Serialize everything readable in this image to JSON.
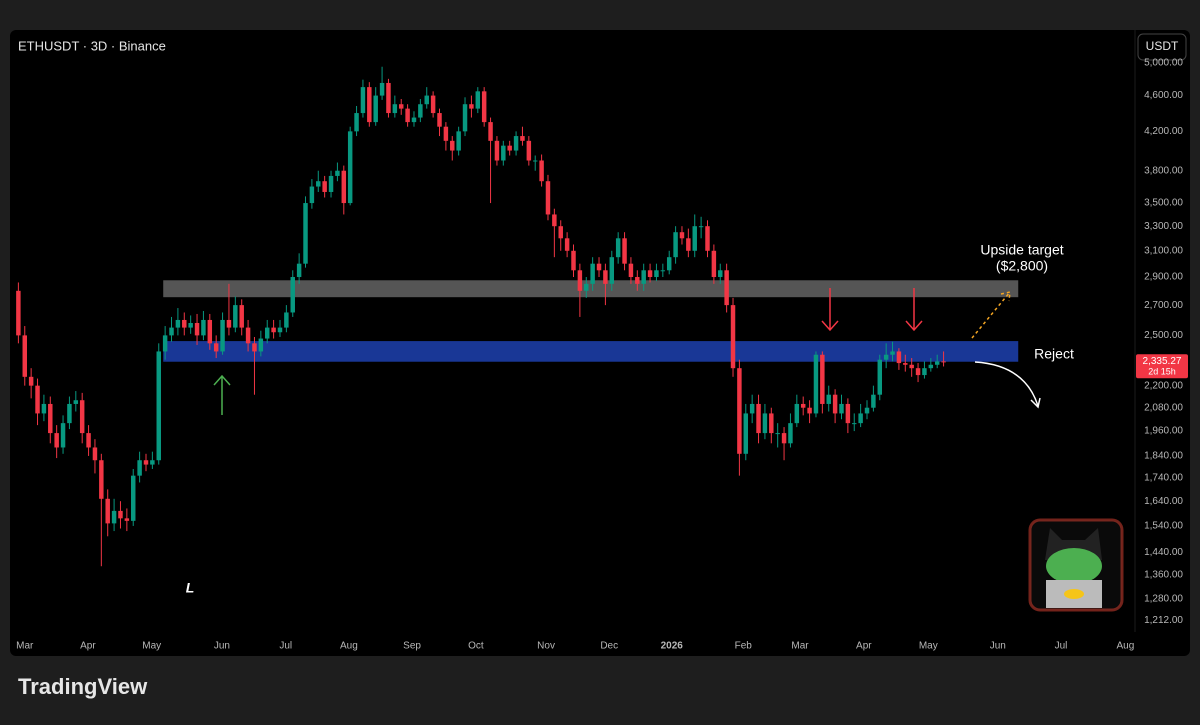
{
  "header": {
    "symbol": "ETHUSDT · 3D · Binance",
    "currency": "USDT"
  },
  "chart_data": {
    "type": "candlestick",
    "log_scale": true,
    "grid": false,
    "up_color": "#089981",
    "down_color": "#f23645",
    "x": [
      -1,
      0,
      1,
      2,
      3,
      4,
      5,
      6,
      7,
      8,
      9,
      10,
      11,
      12,
      13,
      14,
      15,
      16,
      17,
      18,
      19,
      20,
      21,
      22,
      23,
      24,
      25,
      26,
      27,
      28,
      29,
      30,
      31,
      32,
      33,
      34,
      35,
      36,
      37,
      38,
      39,
      40,
      41,
      42,
      43,
      44,
      45,
      46,
      47,
      48,
      49,
      50,
      51,
      52,
      53,
      54,
      55,
      56,
      57,
      58,
      59,
      60,
      61,
      62,
      63,
      64,
      65,
      66,
      67,
      68,
      69,
      70,
      71,
      72,
      73,
      74,
      75,
      76,
      77,
      78,
      79,
      80,
      81,
      82,
      83,
      84,
      85,
      86,
      87,
      88,
      89,
      90,
      91,
      92,
      93,
      94,
      95,
      96,
      97,
      98,
      99,
      100,
      101,
      102,
      103,
      104,
      105,
      106,
      107,
      108,
      109,
      110,
      111,
      112,
      113,
      114,
      115,
      116,
      117,
      118,
      119,
      120,
      121,
      122,
      123,
      124,
      125,
      126,
      127,
      128,
      129,
      130,
      131,
      132,
      133,
      134,
      135,
      136,
      137,
      138,
      139,
      140,
      141,
      142,
      143,
      144
    ],
    "open": [
      2800,
      2500,
      2250,
      2200,
      2050,
      2100,
      1950,
      1880,
      2000,
      2100,
      2120,
      1950,
      1880,
      1820,
      1650,
      1550,
      1600,
      1570,
      1560,
      1750,
      1820,
      1800,
      1820,
      2400,
      2500,
      2550,
      2600,
      2550,
      2580,
      2500,
      2600,
      2450,
      2400,
      2600,
      2550,
      2700,
      2550,
      2450,
      2400,
      2480,
      2550,
      2520,
      2550,
      2650,
      2900,
      3000,
      3500,
      3650,
      3700,
      3600,
      3750,
      3800,
      3500,
      4200,
      4400,
      4700,
      4300,
      4600,
      4750,
      4400,
      4500,
      4450,
      4300,
      4350,
      4500,
      4600,
      4400,
      4250,
      4100,
      4000,
      4200,
      4500,
      4450,
      4650,
      4300,
      4100,
      3900,
      4050,
      4000,
      4150,
      4100,
      3900,
      3900,
      3700,
      3400,
      3300,
      3200,
      3100,
      2950,
      2800,
      2850,
      3000,
      2950,
      2850,
      3050,
      3200,
      3000,
      2900,
      2850,
      2950,
      2900,
      2950,
      2950,
      3050,
      3250,
      3200,
      3100,
      3300,
      3300,
      3100,
      2900,
      2950,
      2700,
      2300,
      1850,
      2050,
      2100,
      1950,
      2050,
      1950,
      1950,
      1900,
      2000,
      2100,
      2080,
      2050,
      2380,
      2100,
      2150,
      2050,
      2100,
      2000,
      2000,
      2050,
      2080,
      2150,
      2350,
      2380,
      2400,
      2330,
      2320,
      2300,
      2260,
      2300,
      2320,
      2340
    ],
    "high": [
      2860,
      2560,
      2300,
      2240,
      2150,
      2140,
      1990,
      2040,
      2140,
      2170,
      2160,
      1990,
      1920,
      1850,
      1690,
      1650,
      1640,
      1610,
      1780,
      1860,
      1850,
      1860,
      2450,
      2560,
      2620,
      2680,
      2650,
      2630,
      2640,
      2660,
      2640,
      2500,
      2650,
      2850,
      2760,
      2740,
      2600,
      2490,
      2530,
      2600,
      2600,
      2600,
      2700,
      2950,
      3080,
      3560,
      3720,
      3800,
      3750,
      3800,
      3880,
      3850,
      4250,
      4480,
      4790,
      4760,
      4700,
      4950,
      4800,
      4600,
      4560,
      4500,
      4420,
      4560,
      4700,
      4650,
      4450,
      4300,
      4150,
      4250,
      4580,
      4600,
      4700,
      4700,
      4350,
      4150,
      4100,
      4100,
      4200,
      4250,
      4150,
      3950,
      3960,
      3760,
      3450,
      3350,
      3250,
      3150,
      3000,
      2900,
      3050,
      3050,
      3000,
      3100,
      3250,
      3250,
      3050,
      2950,
      3000,
      3000,
      3000,
      3000,
      3100,
      3300,
      3300,
      3280,
      3400,
      3380,
      3350,
      3150,
      3000,
      3000,
      2750,
      2350,
      2100,
      2150,
      2150,
      2100,
      2080,
      2000,
      1980,
      2050,
      2150,
      2140,
      2120,
      2400,
      2400,
      2200,
      2180,
      2150,
      2130,
      2050,
      2100,
      2120,
      2200,
      2380,
      2450,
      2460,
      2420,
      2380,
      2360,
      2330,
      2340,
      2360,
      2380,
      2400
    ],
    "low": [
      2450,
      2200,
      2130,
      1990,
      2010,
      1900,
      1830,
      1850,
      1970,
      2060,
      1900,
      1840,
      1760,
      1390,
      1500,
      1520,
      1530,
      1520,
      1540,
      1720,
      1770,
      1780,
      1800,
      2350,
      2460,
      2500,
      2500,
      2510,
      2440,
      2470,
      2410,
      2360,
      2380,
      2500,
      2520,
      2500,
      2400,
      2150,
      2370,
      2450,
      2480,
      2490,
      2520,
      2620,
      2850,
      2970,
      3450,
      3600,
      3550,
      3550,
      3700,
      3400,
      3480,
      4150,
      4350,
      4250,
      4260,
      4550,
      4350,
      4350,
      4380,
      4250,
      4250,
      4300,
      4450,
      4350,
      4150,
      4000,
      3900,
      3950,
      4150,
      4350,
      4400,
      4250,
      3500,
      3850,
      3850,
      3950,
      3950,
      4050,
      3850,
      3800,
      3650,
      3350,
      3050,
      3100,
      3050,
      2900,
      2620,
      2750,
      2800,
      2900,
      2700,
      2800,
      3000,
      2950,
      2850,
      2800,
      2800,
      2860,
      2870,
      2900,
      2920,
      3000,
      3150,
      3050,
      3050,
      3200,
      3050,
      2850,
      2850,
      2650,
      2250,
      1750,
      1820,
      2000,
      1900,
      1920,
      1900,
      1880,
      1820,
      1880,
      1980,
      2040,
      2000,
      2030,
      2050,
      2060,
      2000,
      2020,
      1950,
      1960,
      1980,
      2020,
      2060,
      2120,
      2300,
      2340,
      2290,
      2280,
      2250,
      2220,
      2240,
      2280,
      2300,
      2310
    ],
    "close": [
      2500,
      2250,
      2200,
      2050,
      2100,
      1950,
      1880,
      2000,
      2100,
      2120,
      1950,
      1880,
      1820,
      1650,
      1550,
      1600,
      1570,
      1560,
      1750,
      1820,
      1800,
      1820,
      2400,
      2500,
      2550,
      2600,
      2550,
      2580,
      2500,
      2600,
      2450,
      2400,
      2600,
      2550,
      2700,
      2550,
      2450,
      2400,
      2480,
      2550,
      2520,
      2550,
      2650,
      2900,
      3000,
      3500,
      3650,
      3700,
      3600,
      3750,
      3800,
      3500,
      4200,
      4400,
      4700,
      4300,
      4600,
      4750,
      4400,
      4500,
      4450,
      4300,
      4350,
      4500,
      4600,
      4400,
      4250,
      4100,
      4000,
      4200,
      4500,
      4450,
      4650,
      4300,
      4100,
      3900,
      4050,
      4000,
      4150,
      4100,
      3900,
      3900,
      3700,
      3400,
      3300,
      3200,
      3100,
      2950,
      2800,
      2850,
      3000,
      2950,
      2850,
      3050,
      3200,
      3000,
      2900,
      2850,
      2950,
      2900,
      2950,
      2950,
      3050,
      3250,
      3200,
      3100,
      3300,
      3300,
      3100,
      2900,
      2950,
      2700,
      2300,
      1850,
      2050,
      2100,
      1950,
      2050,
      1950,
      1950,
      1900,
      2000,
      2100,
      2080,
      2050,
      2380,
      2100,
      2150,
      2050,
      2100,
      2000,
      2000,
      2050,
      2080,
      2150,
      2350,
      2380,
      2400,
      2330,
      2320,
      2300,
      2260,
      2300,
      2320,
      2340,
      2335.27
    ],
    "last_label": "2,335.27",
    "countdown": "2d 15h",
    "xlim": [
      -2,
      174
    ],
    "xticks": [
      {
        "value": 0,
        "label": "Mar"
      },
      {
        "value": 9.9,
        "label": "Apr"
      },
      {
        "value": 19.9,
        "label": "May"
      },
      {
        "value": 30.9,
        "label": "Jun"
      },
      {
        "value": 40.9,
        "label": "Jul"
      },
      {
        "value": 50.8,
        "label": "Aug"
      },
      {
        "value": 60.7,
        "label": "Sep"
      },
      {
        "value": 70.7,
        "label": "Oct"
      },
      {
        "value": 81.7,
        "label": "Nov"
      },
      {
        "value": 91.6,
        "label": "Dec"
      },
      {
        "value": 101.4,
        "label": "2026"
      },
      {
        "value": 112.6,
        "label": "Feb"
      },
      {
        "value": 121.5,
        "label": "Mar"
      },
      {
        "value": 131.5,
        "label": "Apr"
      },
      {
        "value": 141.6,
        "label": "May"
      },
      {
        "value": 152.5,
        "label": "Jun"
      },
      {
        "value": 162.4,
        "label": "Jul"
      },
      {
        "value": 172.5,
        "label": "Aug"
      }
    ],
    "ylim": [
      1167,
      5100
    ],
    "yticks": [
      {
        "value": 5000,
        "label": "5,000.00"
      },
      {
        "value": 4600,
        "label": "4,600.00"
      },
      {
        "value": 4200,
        "label": "4,200.00"
      },
      {
        "value": 3800,
        "label": "3,800.00"
      },
      {
        "value": 3500,
        "label": "3,500.00"
      },
      {
        "value": 3300,
        "label": "3,300.00"
      },
      {
        "value": 3100,
        "label": "3,100.00"
      },
      {
        "value": 2900,
        "label": "2,900.00"
      },
      {
        "value": 2700,
        "label": "2,700.00"
      },
      {
        "value": 2500,
        "label": "2,500.00"
      },
      {
        "value": 2200,
        "label": "2,200.00"
      },
      {
        "value": 2080,
        "label": "2,080.00"
      },
      {
        "value": 1960,
        "label": "1,960.00"
      },
      {
        "value": 1840,
        "label": "1,840.00"
      },
      {
        "value": 1740,
        "label": "1,740.00"
      },
      {
        "value": 1640,
        "label": "1,640.00"
      },
      {
        "value": 1540,
        "label": "1,540.00"
      },
      {
        "value": 1440,
        "label": "1,440.00"
      },
      {
        "value": 1360,
        "label": "1,360.00"
      },
      {
        "value": 1280,
        "label": "1,280.00"
      },
      {
        "value": 1212,
        "label": "1,212.00"
      }
    ],
    "zones": [
      {
        "range": [
          2755,
          2876
        ],
        "x": [
          21.7,
          155.7
        ],
        "color": "#5a5a5a"
      },
      {
        "range": [
          2338,
          2464
        ],
        "x": [
          21.7,
          155.7
        ],
        "color": "#1a3a9e"
      }
    ],
    "annotations": [
      "Upside target",
      "($2,800)",
      "Reject",
      "L"
    ]
  },
  "footer": {
    "brand": "TradingView"
  }
}
